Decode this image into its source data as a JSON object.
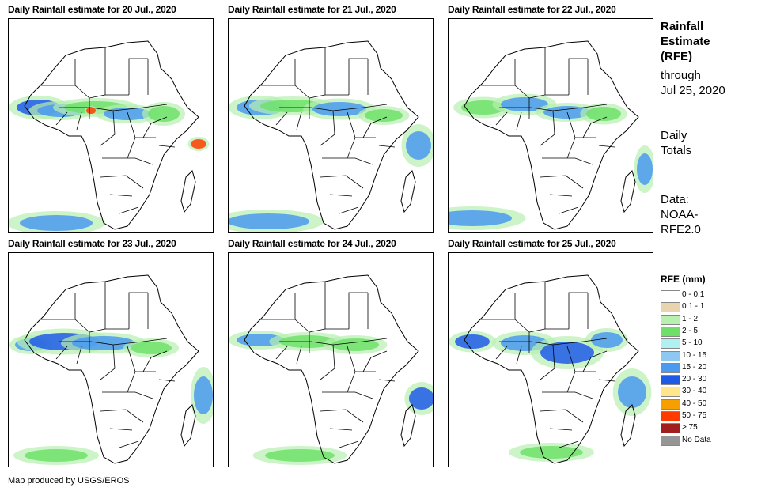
{
  "panels": [
    {
      "title": "Daily Rainfall estimate for 20 Jul., 2020"
    },
    {
      "title": "Daily Rainfall estimate for 21 Jul., 2020"
    },
    {
      "title": "Daily Rainfall estimate for 22 Jul., 2020"
    },
    {
      "title": "Daily Rainfall estimate for 23 Jul., 2020"
    },
    {
      "title": "Daily Rainfall estimate for 24 Jul., 2020"
    },
    {
      "title": "Daily Rainfall estimate for 25 Jul., 2020"
    }
  ],
  "side": {
    "title_line1": "Rainfall",
    "title_line2": "Estimate",
    "title_line3": "(RFE)",
    "through_line1": "through",
    "through_line2": "Jul 25, 2020",
    "daily_line1": "Daily",
    "daily_line2": "Totals",
    "data_line1": "Data:",
    "data_line2": "NOAA-",
    "data_line3": "RFE2.0"
  },
  "legend": {
    "title": "RFE (mm)",
    "items": [
      {
        "label": "0 - 0.1",
        "color": "#ffffff"
      },
      {
        "label": "0.1 - 1",
        "color": "#e8d5b0"
      },
      {
        "label": "1 - 2",
        "color": "#b8f0b0"
      },
      {
        "label": "2 - 5",
        "color": "#6ee06a"
      },
      {
        "label": "5 - 10",
        "color": "#b0f0f0"
      },
      {
        "label": "10 - 15",
        "color": "#8cc8f0"
      },
      {
        "label": "15 - 20",
        "color": "#4a9af0"
      },
      {
        "label": "20 - 30",
        "color": "#1e5ae6"
      },
      {
        "label": "30 - 40",
        "color": "#ffe68c"
      },
      {
        "label": "40 - 50",
        "color": "#f5a000"
      },
      {
        "label": "50 - 75",
        "color": "#ff3c00"
      },
      {
        "label": "> 75",
        "color": "#a01e1e"
      },
      {
        "label": "No Data",
        "color": "#969696"
      }
    ]
  },
  "credit": "Map produced by USGS/EROS"
}
